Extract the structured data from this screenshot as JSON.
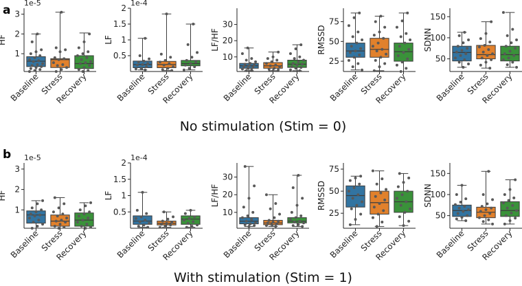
{
  "figure": {
    "panels": [
      {
        "letter": "a",
        "title": "No stimulation (Stim = 0)"
      },
      {
        "letter": "b",
        "title": "With stimulation (Stim = 1)"
      }
    ],
    "category_colors": [
      "#3274a1",
      "#e1812c",
      "#3a923a"
    ],
    "point_color": "#595959"
  },
  "chart_data": [
    {
      "type": "box",
      "row": 0,
      "col": 0,
      "ylabel": "HF",
      "multiplier": "1e-5",
      "ylim": [
        0.1,
        3.3
      ],
      "yticks": [
        1,
        2,
        3
      ],
      "categories": [
        "Baseline",
        "Stress",
        "Recovery"
      ],
      "boxes": [
        {
          "whislo": 0.1,
          "q1": 0.35,
          "med": 0.62,
          "q3": 0.85,
          "whishi": 2.0,
          "points": [
            0.1,
            0.15,
            0.2,
            0.25,
            0.3,
            0.35,
            0.4,
            0.45,
            0.5,
            0.6,
            0.65,
            0.7,
            0.8,
            0.9,
            1.0,
            1.1,
            1.2,
            1.6,
            2.0
          ]
        },
        {
          "whislo": 0.1,
          "q1": 0.3,
          "med": 0.7,
          "q3": 0.75,
          "whishi": 3.1,
          "points": [
            0.1,
            0.2,
            0.3,
            0.4,
            0.45,
            0.55,
            0.7,
            0.75,
            0.8,
            1.1,
            1.2,
            1.3,
            3.1
          ]
        },
        {
          "whislo": 0.1,
          "q1": 0.25,
          "med": 0.5,
          "q3": 0.9,
          "whishi": 2.05,
          "points": [
            0.1,
            0.15,
            0.2,
            0.3,
            0.4,
            0.5,
            0.55,
            0.6,
            0.7,
            0.8,
            0.9,
            1.0,
            1.1,
            1.3,
            1.6,
            2.0
          ]
        }
      ]
    },
    {
      "type": "box",
      "row": 0,
      "col": 1,
      "ylabel": "LF",
      "multiplier": "1e-4",
      "ylim": [
        0.0,
        2.0
      ],
      "yticks": [
        0.5,
        1.0,
        1.5,
        2.0
      ],
      "categories": [
        "Baseline",
        "Stress",
        "Recovery"
      ],
      "boxes": [
        {
          "whislo": 0.05,
          "q1": 0.12,
          "med": 0.22,
          "q3": 0.33,
          "whishi": 1.05,
          "points": [
            0.05,
            0.08,
            0.1,
            0.15,
            0.2,
            0.22,
            0.25,
            0.3,
            0.33,
            0.4,
            0.5,
            1.05
          ]
        },
        {
          "whislo": 0.03,
          "q1": 0.12,
          "med": 0.22,
          "q3": 0.32,
          "whishi": 1.82,
          "points": [
            0.03,
            0.06,
            0.1,
            0.15,
            0.2,
            0.25,
            0.3,
            0.35,
            0.45,
            0.55,
            1.82
          ]
        },
        {
          "whislo": 0.05,
          "q1": 0.18,
          "med": 0.25,
          "q3": 0.35,
          "whishi": 1.5,
          "points": [
            0.05,
            0.1,
            0.15,
            0.2,
            0.25,
            0.3,
            0.35,
            0.45,
            0.6,
            0.85,
            1.5
          ]
        }
      ]
    },
    {
      "type": "box",
      "row": 0,
      "col": 2,
      "ylabel": "LF/HF",
      "multiplier": "",
      "ylim": [
        1,
        40
      ],
      "yticks": [
        10,
        20,
        30
      ],
      "categories": [
        "Baseline",
        "Stress",
        "Recovery"
      ],
      "boxes": [
        {
          "whislo": 1.5,
          "q1": 3,
          "med": 4.5,
          "q3": 6,
          "whishi": 15.5,
          "points": [
            1.5,
            2,
            2.5,
            3,
            3.5,
            4,
            4.5,
            5,
            5.5,
            6,
            7,
            8,
            9,
            12,
            15.5
          ]
        },
        {
          "whislo": 1.5,
          "q1": 3,
          "med": 4.5,
          "q3": 6.5,
          "whishi": 13,
          "points": [
            1.5,
            2,
            2.5,
            3,
            4,
            4.5,
            5,
            6,
            7,
            8,
            9,
            10,
            13
          ]
        },
        {
          "whislo": 1.5,
          "q1": 3.5,
          "med": 5.5,
          "q3": 8,
          "whishi": 17.5,
          "points": [
            1.5,
            2,
            3,
            3.5,
            4,
            5,
            5.5,
            6,
            7,
            8,
            9,
            10,
            12,
            15,
            17.5
          ]
        }
      ]
    },
    {
      "type": "box",
      "row": 0,
      "col": 3,
      "ylabel": "RMSSD",
      "multiplier": "",
      "ylim": [
        12,
        92
      ],
      "yticks": [
        25,
        50,
        75
      ],
      "categories": [
        "Baseline",
        "Stress",
        "Recovery"
      ],
      "boxes": [
        {
          "whislo": 14,
          "q1": 30,
          "med": 38,
          "q3": 48,
          "whishi": 86,
          "points": [
            14,
            18,
            22,
            26,
            30,
            33,
            36,
            38,
            41,
            44,
            48,
            52,
            56,
            62,
            70,
            80,
            86
          ]
        },
        {
          "whislo": 13,
          "q1": 30,
          "med": 40,
          "q3": 54,
          "whishi": 82,
          "points": [
            13,
            18,
            22,
            26,
            30,
            34,
            38,
            40,
            44,
            48,
            54,
            58,
            62,
            68,
            75,
            82
          ]
        },
        {
          "whislo": 12,
          "q1": 25,
          "med": 37,
          "q3": 48,
          "whishi": 86,
          "points": [
            12,
            16,
            20,
            24,
            28,
            32,
            36,
            40,
            44,
            48,
            52,
            56,
            60,
            68,
            76,
            86
          ]
        }
      ]
    },
    {
      "type": "box",
      "row": 0,
      "col": 4,
      "ylabel": "SDNN",
      "multiplier": "",
      "ylim": [
        20,
        170
      ],
      "yticks": [
        50,
        100,
        150
      ],
      "categories": [
        "Baseline",
        "Stress",
        "Recovery"
      ],
      "boxes": [
        {
          "whislo": 30,
          "q1": 45,
          "med": 65,
          "q3": 80,
          "whishi": 113,
          "points": [
            30,
            38,
            42,
            48,
            52,
            58,
            62,
            66,
            70,
            75,
            80,
            88,
            95,
            105,
            113
          ]
        },
        {
          "whislo": 28,
          "q1": 50,
          "med": 60,
          "q3": 82,
          "whishi": 138,
          "points": [
            28,
            35,
            42,
            48,
            52,
            58,
            62,
            66,
            72,
            78,
            82,
            90,
            98,
            110,
            138
          ]
        },
        {
          "whislo": 30,
          "q1": 45,
          "med": 60,
          "q3": 80,
          "whishi": 160,
          "points": [
            30,
            36,
            42,
            48,
            52,
            58,
            62,
            68,
            75,
            80,
            88,
            95,
            105,
            120,
            160
          ]
        }
      ]
    },
    {
      "type": "box",
      "row": 1,
      "col": 0,
      "ylabel": "HF",
      "multiplier": "1e-5",
      "ylim": [
        0.1,
        3.3
      ],
      "yticks": [
        1,
        2,
        3
      ],
      "categories": [
        "Baseline",
        "Stress",
        "Recovery"
      ],
      "boxes": [
        {
          "whislo": 0.1,
          "q1": 0.35,
          "med": 0.75,
          "q3": 0.95,
          "whishi": 1.45,
          "points": [
            0.1,
            0.2,
            0.3,
            0.4,
            0.5,
            0.6,
            0.7,
            0.75,
            0.8,
            0.9,
            1.0,
            1.1,
            1.3,
            1.45
          ]
        },
        {
          "whislo": 0.1,
          "q1": 0.2,
          "med": 0.45,
          "q3": 0.75,
          "whishi": 1.6,
          "points": [
            0.1,
            0.15,
            0.2,
            0.3,
            0.4,
            0.45,
            0.5,
            0.6,
            0.7,
            0.8,
            0.9,
            1.1,
            1.3,
            1.6
          ]
        },
        {
          "whislo": 0.1,
          "q1": 0.2,
          "med": 0.5,
          "q3": 0.85,
          "whishi": 1.35,
          "points": [
            0.1,
            0.15,
            0.2,
            0.3,
            0.4,
            0.5,
            0.6,
            0.7,
            0.8,
            0.9,
            1.0,
            1.2,
            1.35
          ]
        }
      ]
    },
    {
      "type": "box",
      "row": 1,
      "col": 1,
      "ylabel": "LF",
      "multiplier": "1e-4",
      "ylim": [
        0.0,
        2.0
      ],
      "yticks": [
        0.5,
        1.0,
        1.5,
        2.0
      ],
      "categories": [
        "Baseline",
        "Stress",
        "Recovery"
      ],
      "boxes": [
        {
          "whislo": 0.03,
          "q1": 0.12,
          "med": 0.22,
          "q3": 0.38,
          "whishi": 1.1,
          "points": [
            0.03,
            0.06,
            0.1,
            0.15,
            0.2,
            0.25,
            0.3,
            0.35,
            0.45,
            0.55,
            1.1
          ]
        },
        {
          "whislo": 0.03,
          "q1": 0.1,
          "med": 0.15,
          "q3": 0.22,
          "whishi": 0.5,
          "points": [
            0.03,
            0.06,
            0.1,
            0.12,
            0.15,
            0.18,
            0.22,
            0.28,
            0.35,
            0.5
          ]
        },
        {
          "whislo": 0.03,
          "q1": 0.12,
          "med": 0.28,
          "q3": 0.38,
          "whishi": 0.55,
          "points": [
            0.03,
            0.06,
            0.1,
            0.15,
            0.2,
            0.25,
            0.3,
            0.35,
            0.45,
            0.55
          ]
        }
      ]
    },
    {
      "type": "box",
      "row": 1,
      "col": 2,
      "ylabel": "LF/HF",
      "multiplier": "",
      "ylim": [
        1,
        38
      ],
      "yticks": [
        10,
        20,
        30
      ],
      "categories": [
        "Baseline",
        "Stress",
        "Recovery"
      ],
      "boxes": [
        {
          "whislo": 2,
          "q1": 3.5,
          "med": 5,
          "q3": 7,
          "whishi": 36,
          "points": [
            2,
            2.5,
            3,
            3.5,
            4,
            5,
            6,
            7,
            8,
            10,
            13,
            18,
            25,
            36
          ]
        },
        {
          "whislo": 2,
          "q1": 3,
          "med": 4,
          "q3": 5.5,
          "whishi": 20,
          "points": [
            2,
            2.5,
            3,
            3.5,
            4,
            4.5,
            5,
            5.5,
            7,
            9,
            12,
            15,
            20
          ]
        },
        {
          "whislo": 2,
          "q1": 4,
          "med": 5,
          "q3": 7,
          "whishi": 31,
          "points": [
            2,
            2.5,
            3,
            4,
            4.5,
            5,
            6,
            7,
            8,
            10,
            14,
            18,
            24,
            31
          ]
        }
      ]
    },
    {
      "type": "box",
      "row": 1,
      "col": 3,
      "ylabel": "RMSSD",
      "multiplier": "",
      "ylim": [
        8,
        82
      ],
      "yticks": [
        25,
        50,
        75
      ],
      "categories": [
        "Baseline",
        "Stress",
        "Recovery"
      ],
      "boxes": [
        {
          "whislo": 12,
          "q1": 32,
          "med": 45,
          "q3": 56,
          "whishi": 67,
          "points": [
            12,
            18,
            24,
            30,
            34,
            38,
            42,
            46,
            50,
            54,
            58,
            62,
            65,
            67
          ]
        },
        {
          "whislo": 10,
          "q1": 24,
          "med": 37,
          "q3": 50,
          "whishi": 73,
          "points": [
            10,
            15,
            20,
            24,
            28,
            32,
            36,
            40,
            44,
            48,
            52,
            58,
            64,
            73
          ]
        },
        {
          "whislo": 11,
          "q1": 26,
          "med": 38,
          "q3": 50,
          "whishi": 70,
          "points": [
            11,
            16,
            21,
            26,
            30,
            34,
            38,
            42,
            46,
            50,
            55,
            60,
            65,
            70
          ]
        }
      ]
    },
    {
      "type": "box",
      "row": 1,
      "col": 4,
      "ylabel": "SDNN",
      "multiplier": "",
      "ylim": [
        20,
        175
      ],
      "yticks": [
        50,
        100,
        150
      ],
      "categories": [
        "Baseline",
        "Stress",
        "Recovery"
      ],
      "boxes": [
        {
          "whislo": 38,
          "q1": 48,
          "med": 62,
          "q3": 75,
          "whishi": 122,
          "points": [
            38,
            42,
            46,
            50,
            55,
            60,
            64,
            68,
            72,
            76,
            82,
            90,
            100,
            122
          ]
        },
        {
          "whislo": 30,
          "q1": 45,
          "med": 58,
          "q3": 70,
          "whishi": 155,
          "points": [
            30,
            36,
            40,
            45,
            50,
            55,
            60,
            64,
            68,
            72,
            78,
            88,
            100,
            155
          ]
        },
        {
          "whislo": 30,
          "q1": 48,
          "med": 62,
          "q3": 83,
          "whishi": 135,
          "points": [
            30,
            38,
            44,
            50,
            56,
            62,
            68,
            74,
            80,
            86,
            92,
            100,
            112,
            135
          ]
        }
      ]
    }
  ]
}
